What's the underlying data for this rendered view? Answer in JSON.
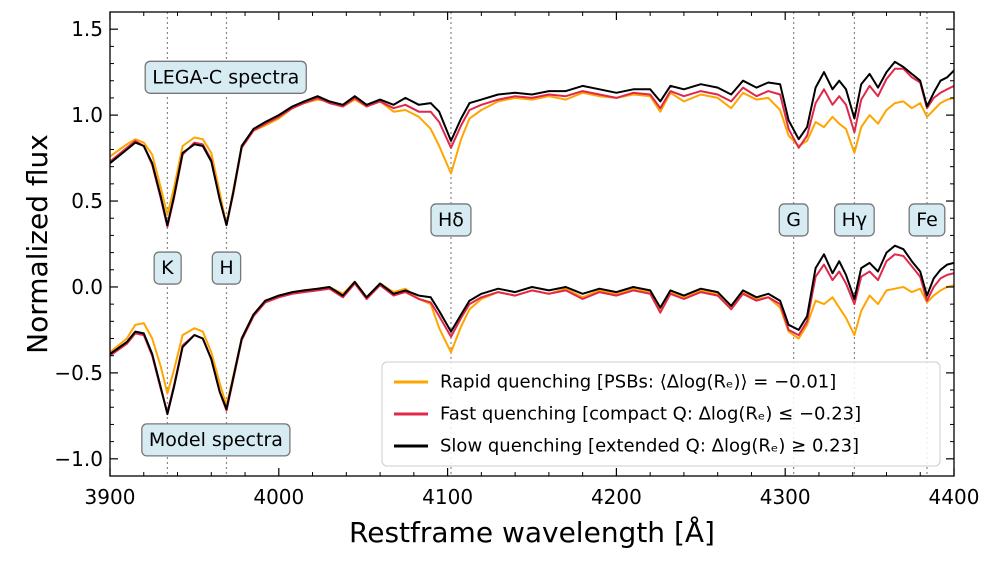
{
  "chart_data": {
    "type": "line",
    "title": "",
    "xlabel": "Restframe wavelength [Å]",
    "ylabel": "Normalized flux",
    "xlim": [
      3900,
      4400
    ],
    "ylim": [
      -1.1,
      1.6
    ],
    "xticks": [
      {
        "value": 3900,
        "label": "3900"
      },
      {
        "value": 4000,
        "label": "4000"
      },
      {
        "value": 4100,
        "label": "4100"
      },
      {
        "value": 4200,
        "label": "4200"
      },
      {
        "value": 4300,
        "label": "4300"
      },
      {
        "value": 4400,
        "label": "4400"
      }
    ],
    "yticks": [
      {
        "value": 1.5,
        "label": "1.5"
      },
      {
        "value": 1.0,
        "label": "1.0"
      },
      {
        "value": 0.5,
        "label": "0.5"
      },
      {
        "value": 0.0,
        "label": "0.0"
      },
      {
        "value": -0.5,
        "label": "−0.5"
      },
      {
        "value": -1.0,
        "label": "−1.0"
      }
    ],
    "grid": false,
    "legend_position": "bottom-right",
    "panel_labels": [
      {
        "text": "LEGA-C spectra",
        "x": 3925,
        "y": 1.22
      },
      {
        "text": "Model spectra",
        "x": 3923,
        "y": -0.89
      }
    ],
    "line_markers": [
      {
        "name": "k",
        "label": "K",
        "wavelength": 3934,
        "label_y": 0.11
      },
      {
        "name": "h",
        "label": "H",
        "wavelength": 3969,
        "label_y": 0.11
      },
      {
        "name": "hdelta",
        "label": "Hδ",
        "wavelength": 4102,
        "label_y": 0.39
      },
      {
        "name": "g",
        "label": "G",
        "wavelength": 4305,
        "label_y": 0.39
      },
      {
        "name": "hgamma",
        "label": "Hγ",
        "wavelength": 4341,
        "label_y": 0.39
      },
      {
        "name": "fe",
        "label": "Fe",
        "wavelength": 4384,
        "label_y": 0.39
      }
    ],
    "x": [
      3900,
      3910,
      3915,
      3920,
      3925,
      3930,
      3934,
      3938,
      3943,
      3950,
      3955,
      3960,
      3965,
      3969,
      3973,
      3978,
      3985,
      3992,
      4000,
      4008,
      4015,
      4023,
      4030,
      4038,
      4045,
      4052,
      4060,
      4068,
      4075,
      4083,
      4090,
      4095,
      4102,
      4108,
      4113,
      4120,
      4130,
      4140,
      4150,
      4160,
      4170,
      4180,
      4190,
      4200,
      4210,
      4220,
      4226,
      4232,
      4240,
      4250,
      4260,
      4268,
      4275,
      4283,
      4290,
      4297,
      4302,
      4308,
      4313,
      4318,
      4323,
      4328,
      4332,
      4336,
      4341,
      4345,
      4350,
      4355,
      4360,
      4365,
      4370,
      4375,
      4380,
      4384,
      4388,
      4392,
      4396,
      4400
    ],
    "series": [
      {
        "name": "rapid",
        "label": "Rapid quenching [PSBs: ⟨Δlog(Rₑ)⟩ = −0.01]",
        "color": "#ffa500",
        "panel": "LEGA-C spectra",
        "values": [
          0.76,
          0.83,
          0.86,
          0.84,
          0.77,
          0.58,
          0.42,
          0.58,
          0.82,
          0.87,
          0.86,
          0.78,
          0.55,
          0.36,
          0.56,
          0.82,
          0.91,
          0.94,
          0.98,
          1.04,
          1.07,
          1.09,
          1.08,
          1.05,
          1.09,
          1.05,
          1.08,
          1.02,
          1.03,
          0.99,
          0.92,
          0.82,
          0.66,
          0.86,
          0.98,
          1.03,
          1.08,
          1.1,
          1.09,
          1.11,
          1.09,
          1.13,
          1.11,
          1.1,
          1.12,
          1.11,
          1.02,
          1.13,
          1.08,
          1.12,
          1.1,
          1.04,
          1.13,
          1.09,
          1.1,
          1.03,
          0.88,
          0.82,
          0.85,
          0.96,
          0.93,
          0.99,
          0.95,
          0.92,
          0.78,
          0.93,
          1.0,
          0.95,
          1.03,
          1.07,
          1.08,
          1.04,
          1.07,
          0.99,
          1.03,
          1.07,
          1.09,
          1.1
        ]
      },
      {
        "name": "fast",
        "label": "Fast quenching [compact Q: Δlog(Rₑ) ≤ −0.23]",
        "color": "#e0284b",
        "panel": "LEGA-C spectra",
        "values": [
          0.73,
          0.81,
          0.85,
          0.82,
          0.71,
          0.52,
          0.35,
          0.52,
          0.77,
          0.84,
          0.83,
          0.74,
          0.51,
          0.36,
          0.54,
          0.81,
          0.91,
          0.95,
          0.99,
          1.04,
          1.07,
          1.1,
          1.07,
          1.05,
          1.1,
          1.05,
          1.08,
          1.04,
          1.06,
          1.02,
          1.02,
          0.96,
          0.81,
          0.94,
          1.03,
          1.06,
          1.09,
          1.11,
          1.1,
          1.12,
          1.11,
          1.14,
          1.12,
          1.1,
          1.13,
          1.12,
          1.04,
          1.14,
          1.11,
          1.14,
          1.12,
          1.08,
          1.16,
          1.11,
          1.14,
          1.12,
          0.92,
          0.81,
          0.88,
          1.07,
          1.15,
          1.06,
          1.11,
          1.06,
          0.9,
          1.09,
          1.17,
          1.11,
          1.21,
          1.27,
          1.27,
          1.22,
          1.19,
          1.04,
          1.1,
          1.13,
          1.15,
          1.17
        ]
      },
      {
        "name": "slow",
        "label": "Slow quenching [extended Q: Δlog(Rₑ) ≥ 0.23]",
        "color": "#000000",
        "panel": "LEGA-C spectra",
        "values": [
          0.72,
          0.8,
          0.84,
          0.82,
          0.72,
          0.53,
          0.36,
          0.53,
          0.78,
          0.83,
          0.82,
          0.73,
          0.51,
          0.36,
          0.55,
          0.82,
          0.92,
          0.96,
          1.0,
          1.05,
          1.08,
          1.11,
          1.08,
          1.06,
          1.11,
          1.06,
          1.09,
          1.06,
          1.1,
          1.06,
          1.07,
          1.02,
          0.85,
          0.98,
          1.07,
          1.09,
          1.12,
          1.13,
          1.12,
          1.14,
          1.14,
          1.17,
          1.15,
          1.13,
          1.15,
          1.15,
          1.08,
          1.17,
          1.15,
          1.18,
          1.16,
          1.12,
          1.2,
          1.16,
          1.19,
          1.18,
          0.97,
          0.86,
          0.93,
          1.16,
          1.25,
          1.15,
          1.2,
          1.15,
          0.98,
          1.18,
          1.24,
          1.16,
          1.25,
          1.31,
          1.28,
          1.24,
          1.2,
          1.05,
          1.13,
          1.2,
          1.22,
          1.26
        ]
      },
      {
        "name": "rapid-model",
        "label": "",
        "color": "#ffa500",
        "panel": "Model spectra",
        "values": [
          -0.38,
          -0.3,
          -0.22,
          -0.21,
          -0.3,
          -0.46,
          -0.62,
          -0.48,
          -0.28,
          -0.24,
          -0.26,
          -0.38,
          -0.56,
          -0.69,
          -0.52,
          -0.3,
          -0.16,
          -0.08,
          -0.05,
          -0.03,
          -0.02,
          -0.01,
          0.0,
          -0.04,
          0.03,
          -0.06,
          0.02,
          -0.03,
          -0.01,
          -0.07,
          -0.1,
          -0.24,
          -0.38,
          -0.23,
          -0.13,
          -0.07,
          -0.03,
          -0.05,
          -0.02,
          -0.04,
          -0.01,
          -0.06,
          -0.02,
          -0.04,
          -0.01,
          -0.03,
          -0.13,
          -0.03,
          -0.06,
          -0.02,
          -0.04,
          -0.12,
          -0.03,
          -0.07,
          -0.06,
          -0.12,
          -0.26,
          -0.3,
          -0.22,
          -0.08,
          -0.1,
          -0.06,
          -0.12,
          -0.18,
          -0.28,
          -0.14,
          -0.05,
          -0.1,
          -0.02,
          -0.01,
          0.0,
          -0.03,
          -0.01,
          -0.09,
          -0.05,
          -0.02,
          0.0,
          0.01
        ]
      },
      {
        "name": "fast-model",
        "label": "",
        "color": "#e0284b",
        "panel": "Model spectra",
        "values": [
          -0.4,
          -0.33,
          -0.27,
          -0.28,
          -0.4,
          -0.59,
          -0.73,
          -0.57,
          -0.34,
          -0.28,
          -0.3,
          -0.42,
          -0.61,
          -0.72,
          -0.54,
          -0.31,
          -0.17,
          -0.09,
          -0.06,
          -0.04,
          -0.03,
          -0.02,
          -0.01,
          -0.06,
          0.02,
          -0.07,
          0.01,
          -0.05,
          -0.03,
          -0.07,
          -0.09,
          -0.17,
          -0.29,
          -0.18,
          -0.1,
          -0.06,
          -0.03,
          -0.05,
          -0.02,
          -0.04,
          -0.02,
          -0.07,
          -0.03,
          -0.05,
          -0.02,
          -0.04,
          -0.15,
          -0.04,
          -0.07,
          -0.03,
          -0.05,
          -0.13,
          -0.04,
          -0.08,
          -0.06,
          -0.1,
          -0.25,
          -0.28,
          -0.2,
          0.06,
          0.13,
          0.04,
          0.09,
          0.02,
          -0.1,
          0.06,
          0.09,
          0.04,
          0.15,
          0.19,
          0.18,
          0.12,
          0.06,
          -0.08,
          0.0,
          0.05,
          0.07,
          0.08
        ]
      },
      {
        "name": "slow-model",
        "label": "",
        "color": "#000000",
        "panel": "Model spectra",
        "values": [
          -0.39,
          -0.32,
          -0.26,
          -0.27,
          -0.39,
          -0.58,
          -0.74,
          -0.58,
          -0.35,
          -0.28,
          -0.3,
          -0.42,
          -0.61,
          -0.71,
          -0.53,
          -0.3,
          -0.16,
          -0.08,
          -0.05,
          -0.03,
          -0.02,
          -0.01,
          0.0,
          -0.05,
          0.03,
          -0.06,
          0.02,
          -0.04,
          -0.02,
          -0.05,
          -0.06,
          -0.14,
          -0.26,
          -0.16,
          -0.08,
          -0.04,
          -0.01,
          -0.03,
          0.0,
          -0.02,
          0.0,
          -0.04,
          -0.01,
          -0.03,
          0.0,
          -0.02,
          -0.12,
          -0.02,
          -0.05,
          -0.01,
          -0.03,
          -0.11,
          -0.02,
          -0.06,
          -0.04,
          -0.08,
          -0.22,
          -0.25,
          -0.17,
          0.11,
          0.19,
          0.08,
          0.15,
          0.07,
          -0.07,
          0.11,
          0.14,
          0.09,
          0.2,
          0.24,
          0.22,
          0.15,
          0.09,
          -0.05,
          0.05,
          0.1,
          0.13,
          0.14
        ]
      }
    ]
  }
}
